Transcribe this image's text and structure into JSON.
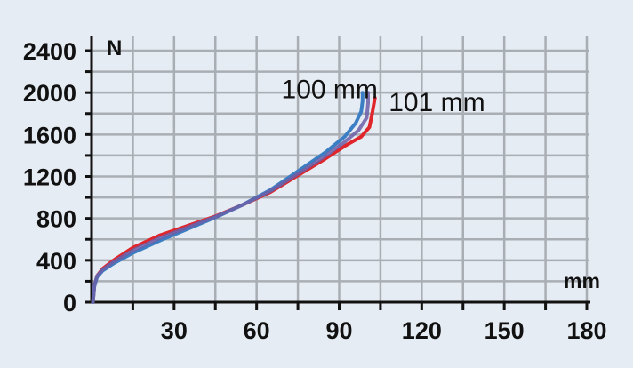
{
  "chart_data": {
    "type": "line",
    "xlabel": "mm",
    "ylabel": "N",
    "xlim": [
      0,
      180
    ],
    "ylim": [
      0,
      2400
    ],
    "x_ticks": [
      30,
      60,
      90,
      120,
      150,
      180
    ],
    "y_ticks": [
      0,
      400,
      800,
      1200,
      1600,
      2000,
      2400
    ],
    "grid": true,
    "colors": {
      "grid": "#a9aeb4",
      "axis": "#111111",
      "background": "#e6ecf3"
    },
    "series": [
      {
        "name": "101 mm",
        "color": "#e0262b",
        "points": [
          [
            0.5,
            0
          ],
          [
            1,
            150
          ],
          [
            2,
            250
          ],
          [
            4,
            320
          ],
          [
            8,
            400
          ],
          [
            15,
            520
          ],
          [
            25,
            640
          ],
          [
            35,
            730
          ],
          [
            45,
            820
          ],
          [
            55,
            930
          ],
          [
            65,
            1050
          ],
          [
            75,
            1210
          ],
          [
            85,
            1370
          ],
          [
            92,
            1490
          ],
          [
            98,
            1580
          ],
          [
            101,
            1670
          ],
          [
            102,
            1800
          ],
          [
            103,
            1950
          ]
        ]
      },
      {
        "name": "100 mm",
        "color": "#3b7ec4",
        "points": [
          [
            0.5,
            0
          ],
          [
            1,
            150
          ],
          [
            2,
            240
          ],
          [
            4,
            300
          ],
          [
            8,
            370
          ],
          [
            15,
            470
          ],
          [
            25,
            590
          ],
          [
            35,
            700
          ],
          [
            45,
            810
          ],
          [
            55,
            930
          ],
          [
            65,
            1070
          ],
          [
            75,
            1250
          ],
          [
            85,
            1430
          ],
          [
            92,
            1580
          ],
          [
            96,
            1710
          ],
          [
            98,
            1820
          ],
          [
            98.5,
            1920
          ],
          [
            98.5,
            2000
          ]
        ]
      },
      {
        "name": "",
        "color": "#6b5fa8",
        "points": [
          [
            0.5,
            0
          ],
          [
            1,
            160
          ],
          [
            2,
            250
          ],
          [
            4,
            310
          ],
          [
            8,
            385
          ],
          [
            15,
            495
          ],
          [
            25,
            615
          ],
          [
            35,
            715
          ],
          [
            45,
            815
          ],
          [
            55,
            930
          ],
          [
            65,
            1060
          ],
          [
            75,
            1225
          ],
          [
            85,
            1395
          ],
          [
            92,
            1530
          ],
          [
            97,
            1640
          ],
          [
            100,
            1760
          ],
          [
            100.5,
            1900
          ],
          [
            100.5,
            2000
          ]
        ]
      }
    ],
    "annotations": [
      {
        "text": "100 mm",
        "x": 69,
        "y": 2030
      },
      {
        "text": "101 mm",
        "x": 108,
        "y": 1910
      }
    ]
  }
}
